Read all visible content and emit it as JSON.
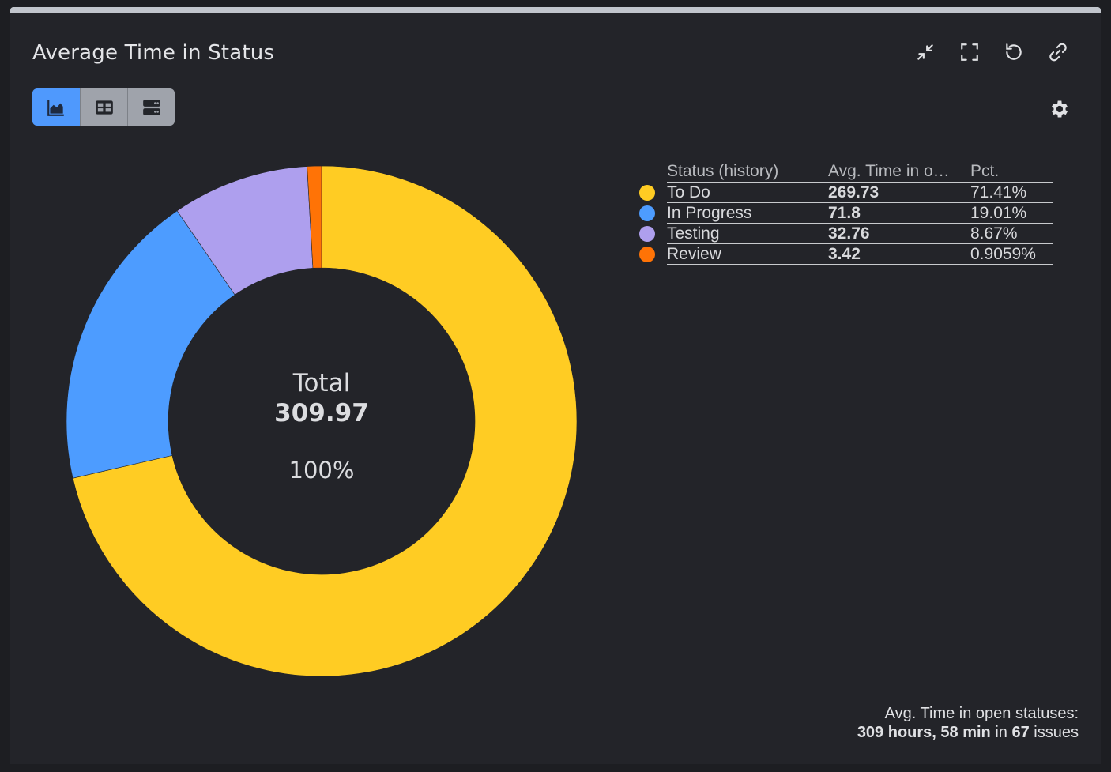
{
  "header": {
    "title": "Average Time in Status"
  },
  "icons": {
    "collapse": "collapse-arrows-icon",
    "fullscreen": "fullscreen-icon",
    "refresh": "refresh-icon",
    "link": "link-icon",
    "settings": "gear-icon",
    "view_chart": "chart-view-icon",
    "view_table": "table-view-icon",
    "view_list": "list-view-icon"
  },
  "colors": {
    "active_view": "#4f99fd",
    "to_do": "#ffcc23",
    "in_progress": "#4d9cff",
    "testing": "#ae9fee",
    "review": "#ff7306"
  },
  "legend": {
    "headers": [
      "Status (history)",
      "Avg. Time in o…",
      "Pct."
    ],
    "rows": [
      {
        "status": "To Do",
        "avg": "269.73",
        "pct": "71.41%"
      },
      {
        "status": "In Progress",
        "avg": "71.8",
        "pct": "19.01%"
      },
      {
        "status": "Testing",
        "avg": "32.76",
        "pct": "8.67%"
      },
      {
        "status": "Review",
        "avg": "3.42",
        "pct": "0.9059%"
      }
    ]
  },
  "footer": {
    "label": "Avg. Time in open statuses:",
    "hours": "309 hours, 58 min",
    "in_text": "in",
    "count": "67",
    "issues_text": "issues"
  },
  "chart_data": {
    "type": "pie",
    "categories": [
      "To Do",
      "In Progress",
      "Testing",
      "Review"
    ],
    "values": [
      269.73,
      71.8,
      32.76,
      3.42
    ],
    "percentages": [
      71.41,
      19.01,
      8.67,
      0.9059
    ],
    "colors": [
      "#ffcc23",
      "#4d9cff",
      "#ae9fee",
      "#ff7306"
    ],
    "center": {
      "label": "Total",
      "value": "309.97",
      "percent": "100%"
    },
    "legend_position": "right"
  }
}
